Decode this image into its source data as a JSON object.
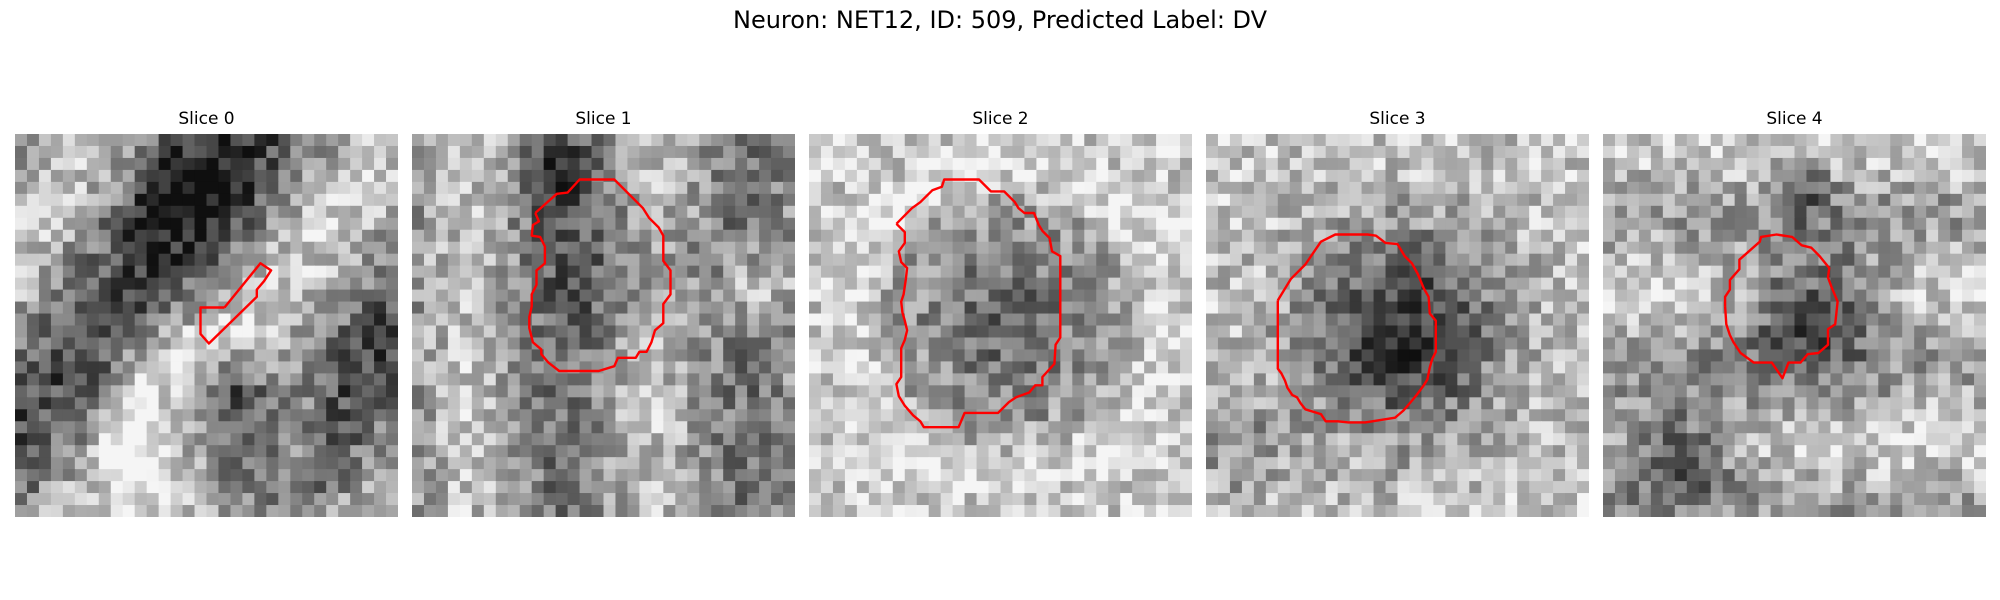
{
  "figure": {
    "title": "Neuron: NET12, ID: 509, Predicted Label: DV"
  },
  "colors": {
    "contour": "#ff0000",
    "background": "#ffffff"
  },
  "panels": [
    {
      "title": "Slice 0",
      "image": "grayscale-microscopy-slice",
      "overlay": "red-roi-contour"
    },
    {
      "title": "Slice 1",
      "image": "grayscale-microscopy-slice",
      "overlay": "red-roi-contour"
    },
    {
      "title": "Slice 2",
      "image": "grayscale-microscopy-slice",
      "overlay": "red-roi-contour"
    },
    {
      "title": "Slice 3",
      "image": "grayscale-microscopy-slice",
      "overlay": "red-roi-contour"
    },
    {
      "title": "Slice 4",
      "image": "grayscale-microscopy-slice",
      "overlay": "red-roi-contour"
    }
  ]
}
